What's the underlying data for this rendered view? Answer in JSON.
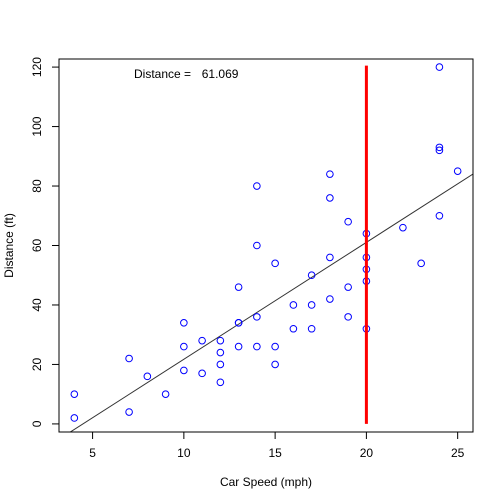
{
  "chart_data": {
    "type": "scatter",
    "title": "",
    "xlabel": "Car Speed (mph)",
    "ylabel": "Distance (ft)",
    "xlim": [
      3.16,
      25.84
    ],
    "ylim": [
      -2.72,
      122.72
    ],
    "xticks": [
      5,
      10,
      15,
      20,
      25
    ],
    "yticks": [
      0,
      20,
      40,
      60,
      80,
      100,
      120
    ],
    "grid": false,
    "annotation": {
      "label": "Distance = ",
      "value": "61.069"
    },
    "point_color": "#0000ff",
    "fit_line": {
      "intercept": -17.579,
      "slope": 3.932,
      "color": "#333333"
    },
    "marker_line": {
      "x": 20,
      "color": "#ff0000"
    },
    "series": [
      {
        "x": [
          4,
          4,
          7,
          7,
          8,
          9,
          10,
          10,
          10,
          11,
          11,
          12,
          12,
          12,
          12,
          13,
          13,
          13,
          13,
          14,
          14,
          14,
          14,
          15,
          15,
          15,
          16,
          16,
          17,
          17,
          17,
          18,
          18,
          18,
          18,
          19,
          19,
          19,
          20,
          20,
          20,
          20,
          20,
          22,
          23,
          24,
          24,
          24,
          24,
          25
        ],
        "y": [
          2,
          10,
          4,
          22,
          16,
          10,
          18,
          26,
          34,
          17,
          28,
          14,
          20,
          24,
          28,
          26,
          34,
          34,
          46,
          26,
          36,
          60,
          80,
          20,
          26,
          54,
          32,
          40,
          32,
          40,
          50,
          42,
          56,
          76,
          84,
          36,
          46,
          68,
          32,
          48,
          52,
          56,
          64,
          66,
          54,
          70,
          92,
          93,
          120,
          85
        ]
      }
    ]
  }
}
